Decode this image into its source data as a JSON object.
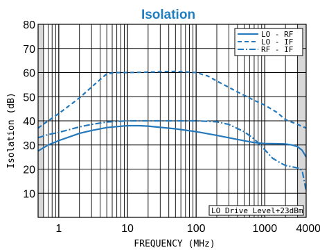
{
  "chart_data": {
    "type": "line",
    "title": "Isolation",
    "xlabel": "FREQUENCY (MHz)",
    "ylabel": "Isolation (dB)",
    "x_scale": "log",
    "xlim": [
      0.5,
      4000
    ],
    "ylim": [
      0,
      80
    ],
    "x_ticks": [
      1,
      10,
      100,
      1000,
      4000
    ],
    "x_tick_labels": [
      "1",
      "10",
      "100",
      "1000",
      "4000"
    ],
    "y_ticks": [
      10,
      20,
      30,
      40,
      50,
      60,
      70,
      80
    ],
    "y_tick_labels": [
      "10",
      "20",
      "30",
      "40",
      "50",
      "60",
      "70",
      "80"
    ],
    "grid": true,
    "shaded_ranges": [
      [
        0.5,
        0.6
      ],
      [
        3000,
        4000
      ]
    ],
    "legend_position": "top-right",
    "annotation": "LO Drive Level+23dBm",
    "colors": {
      "line": "#2479bd",
      "title": "#1f7fc1",
      "shade": "#d8d8d8"
    },
    "series": [
      {
        "name": "LO - RF",
        "dash": "solid",
        "points": [
          [
            0.5,
            27.5
          ],
          [
            0.7,
            30
          ],
          [
            1,
            31.8
          ],
          [
            2,
            34.8
          ],
          [
            3,
            36
          ],
          [
            5,
            37.2
          ],
          [
            7,
            37.6
          ],
          [
            10,
            38
          ],
          [
            15,
            38
          ],
          [
            20,
            37.8
          ],
          [
            30,
            37.3
          ],
          [
            50,
            36.7
          ],
          [
            100,
            35.5
          ],
          [
            200,
            34
          ],
          [
            400,
            32.3
          ],
          [
            700,
            31
          ],
          [
            1000,
            30.6
          ],
          [
            1500,
            30.5
          ],
          [
            2000,
            30.4
          ],
          [
            2500,
            30
          ],
          [
            3000,
            29.3
          ],
          [
            3500,
            27.8
          ],
          [
            4000,
            25
          ]
        ]
      },
      {
        "name": "LO - IF",
        "dash": "dashed",
        "points": [
          [
            0.5,
            37
          ],
          [
            0.7,
            40
          ],
          [
            1,
            43
          ],
          [
            2,
            49.5
          ],
          [
            3,
            54
          ],
          [
            5,
            59.5
          ],
          [
            7,
            60
          ],
          [
            10,
            60
          ],
          [
            20,
            60.2
          ],
          [
            50,
            60.5
          ],
          [
            100,
            60
          ],
          [
            150,
            58.5
          ],
          [
            200,
            56.5
          ],
          [
            400,
            52
          ],
          [
            700,
            48.5
          ],
          [
            1000,
            46.5
          ],
          [
            1500,
            43.5
          ],
          [
            2000,
            40.5
          ],
          [
            3000,
            38.5
          ],
          [
            4000,
            37
          ]
        ]
      },
      {
        "name": "RF - IF",
        "dash": "dashdot",
        "points": [
          [
            0.5,
            33
          ],
          [
            0.7,
            34.3
          ],
          [
            1,
            35.2
          ],
          [
            2,
            37.5
          ],
          [
            3,
            38.5
          ],
          [
            5,
            39.5
          ],
          [
            10,
            40
          ],
          [
            20,
            40
          ],
          [
            50,
            40
          ],
          [
            100,
            40
          ],
          [
            200,
            39.6
          ],
          [
            300,
            38.5
          ],
          [
            500,
            35.5
          ],
          [
            700,
            32.5
          ],
          [
            1000,
            28
          ],
          [
            1300,
            24.5
          ],
          [
            1700,
            22.5
          ],
          [
            2000,
            21.5
          ],
          [
            3000,
            20.5
          ],
          [
            3500,
            19.5
          ],
          [
            4000,
            11
          ]
        ]
      }
    ]
  }
}
